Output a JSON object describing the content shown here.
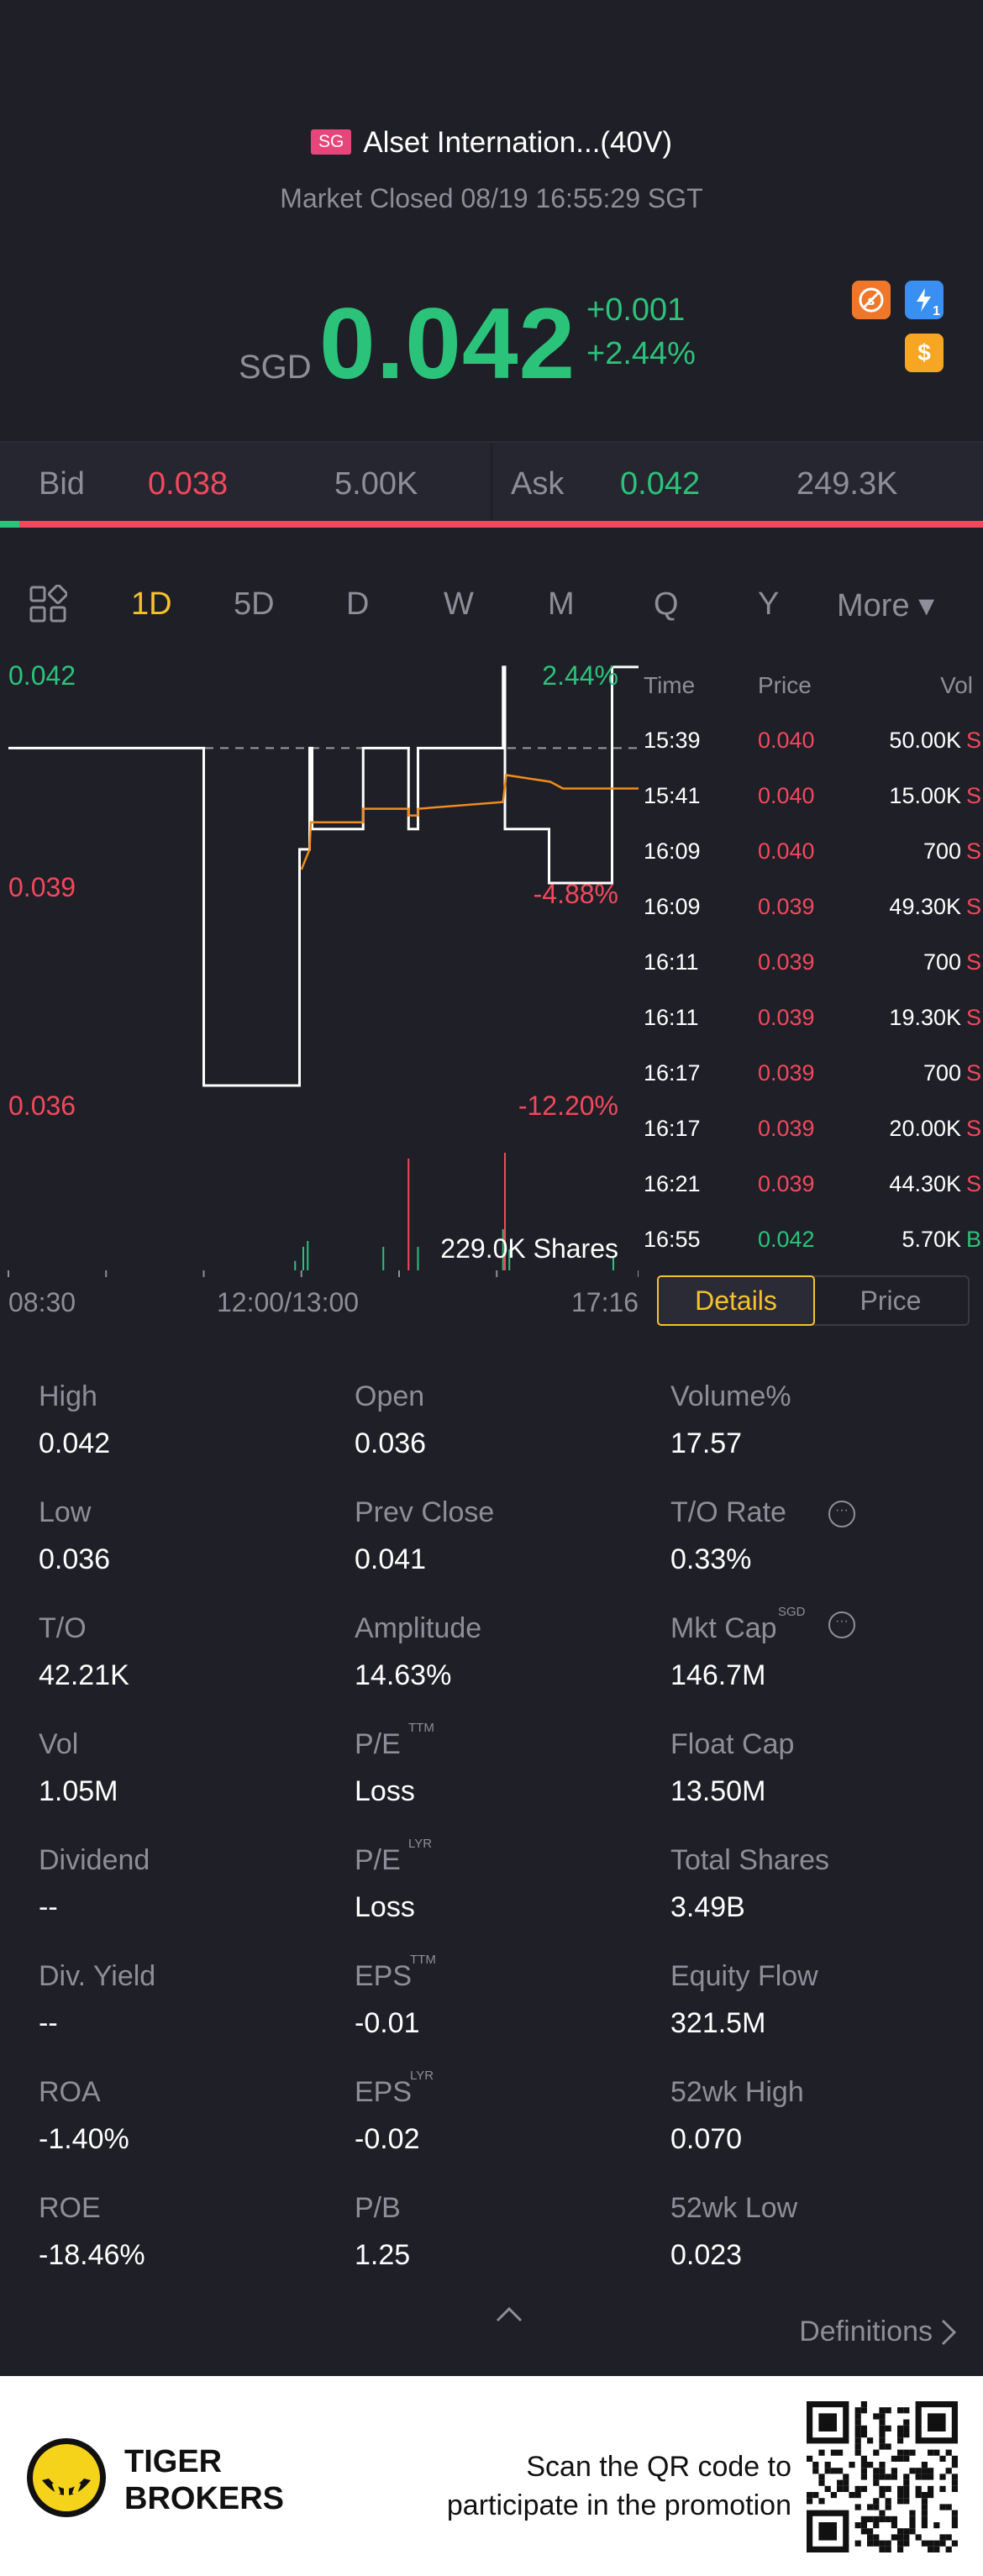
{
  "header": {
    "market_badge": "SG",
    "title": "Alset Internation...(40V)",
    "status": "Market Closed 08/19 16:55:29 SGT",
    "currency": "SGD",
    "price": "0.042",
    "change": "+0.001",
    "change_pct": "+2.44%",
    "icons": [
      "no-short-icon",
      "lightning-level-icon",
      "dollar-icon"
    ],
    "lightning_icon_text": "1",
    "dollar_icon_text": "$"
  },
  "bid_ask": {
    "bid_label": "Bid",
    "bid_price": "0.038",
    "bid_size": "5.00K",
    "ask_label": "Ask",
    "ask_price": "0.042",
    "ask_size": "249.3K",
    "bid_ratio": 0.02
  },
  "tabs": {
    "items": [
      "1D",
      "5D",
      "D",
      "W",
      "M",
      "Q",
      "Y",
      "More ▾"
    ],
    "active": "1D"
  },
  "chart_data": {
    "type": "line",
    "y_labels_left": [
      "0.042",
      "0.039",
      "0.036"
    ],
    "y_labels_right": [
      "2.44%",
      "-4.88%",
      "-12.20%"
    ],
    "x_labels": [
      "08:30",
      "12:00/13:00",
      "17:16"
    ],
    "ylim": [
      0.036,
      0.042
    ],
    "prev_close": 0.041,
    "volume_label": "229.0K Shares",
    "series": [
      {
        "name": "price",
        "color": "#ffffff",
        "values": [
          [
            0,
            0.041
          ],
          [
            0.31,
            0.041
          ],
          [
            0.31,
            0.036
          ],
          [
            0.462,
            0.036
          ],
          [
            0.462,
            0.0395
          ],
          [
            0.478,
            0.0395
          ],
          [
            0.478,
            0.041
          ],
          [
            0.482,
            0.041
          ],
          [
            0.482,
            0.0398
          ],
          [
            0.563,
            0.0398
          ],
          [
            0.563,
            0.041
          ],
          [
            0.635,
            0.041
          ],
          [
            0.635,
            0.0398
          ],
          [
            0.65,
            0.0398
          ],
          [
            0.65,
            0.041
          ],
          [
            0.785,
            0.041
          ],
          [
            0.785,
            0.0422
          ],
          [
            0.788,
            0.0422
          ],
          [
            0.788,
            0.0398
          ],
          [
            0.858,
            0.0398
          ],
          [
            0.858,
            0.039
          ],
          [
            0.958,
            0.039
          ],
          [
            0.958,
            0.0422
          ],
          [
            1.0,
            0.0422
          ]
        ]
      },
      {
        "name": "average",
        "color": "#f08c1e",
        "values": [
          [
            0.465,
            0.0392
          ],
          [
            0.478,
            0.0395
          ],
          [
            0.48,
            0.0399
          ],
          [
            0.563,
            0.0399
          ],
          [
            0.563,
            0.0401
          ],
          [
            0.635,
            0.0401
          ],
          [
            0.635,
            0.04
          ],
          [
            0.65,
            0.04
          ],
          [
            0.65,
            0.0401
          ],
          [
            0.785,
            0.0402
          ],
          [
            0.79,
            0.0406
          ],
          [
            0.86,
            0.0405
          ],
          [
            0.88,
            0.0404
          ],
          [
            1.0,
            0.0404
          ]
        ]
      }
    ],
    "volume_bars": [
      {
        "x": 0.455,
        "v": 0.08,
        "color": "#2bc37a"
      },
      {
        "x": 0.468,
        "v": 0.2,
        "color": "#2bc37a"
      },
      {
        "x": 0.475,
        "v": 0.25,
        "color": "#2bc37a"
      },
      {
        "x": 0.595,
        "v": 0.2,
        "color": "#2bc37a"
      },
      {
        "x": 0.635,
        "v": 0.95,
        "color": "#f2485c"
      },
      {
        "x": 0.65,
        "v": 0.2,
        "color": "#2bc37a"
      },
      {
        "x": 0.785,
        "v": 0.35,
        "color": "#2bc37a"
      },
      {
        "x": 0.788,
        "v": 1.0,
        "color": "#f2485c"
      },
      {
        "x": 0.795,
        "v": 0.18,
        "color": "#2bc37a"
      },
      {
        "x": 0.96,
        "v": 0.12,
        "color": "#2bc37a"
      }
    ]
  },
  "ticks": {
    "headers": {
      "time": "Time",
      "price": "Price",
      "vol": "Vol"
    },
    "rows": [
      {
        "time": "15:39",
        "price": "0.040",
        "vol": "50.00K",
        "side": "S",
        "dir": "down"
      },
      {
        "time": "15:41",
        "price": "0.040",
        "vol": "15.00K",
        "side": "S",
        "dir": "down"
      },
      {
        "time": "16:09",
        "price": "0.040",
        "vol": "700",
        "side": "S",
        "dir": "down"
      },
      {
        "time": "16:09",
        "price": "0.039",
        "vol": "49.30K",
        "side": "S",
        "dir": "down"
      },
      {
        "time": "16:11",
        "price": "0.039",
        "vol": "700",
        "side": "S",
        "dir": "down"
      },
      {
        "time": "16:11",
        "price": "0.039",
        "vol": "19.30K",
        "side": "S",
        "dir": "down"
      },
      {
        "time": "16:17",
        "price": "0.039",
        "vol": "700",
        "side": "S",
        "dir": "down"
      },
      {
        "time": "16:17",
        "price": "0.039",
        "vol": "20.00K",
        "side": "S",
        "dir": "down"
      },
      {
        "time": "16:21",
        "price": "0.039",
        "vol": "44.30K",
        "side": "S",
        "dir": "down"
      },
      {
        "time": "16:55",
        "price": "0.042",
        "vol": "5.70K",
        "side": "B",
        "dir": "up"
      }
    ],
    "details_label": "Details",
    "price_label": "Price"
  },
  "stats": [
    [
      {
        "label": "High",
        "value": "0.042"
      },
      {
        "label": "Open",
        "value": "0.036"
      },
      {
        "label": "Volume%",
        "value": "17.57"
      }
    ],
    [
      {
        "label": "Low",
        "value": "0.036"
      },
      {
        "label": "Prev Close",
        "value": "0.041"
      },
      {
        "label": "T/O Rate",
        "value": "0.33%"
      }
    ],
    [
      {
        "label": "T/O",
        "value": "42.21K"
      },
      {
        "label": "Amplitude",
        "value": "14.63%"
      },
      {
        "label": "Mkt Cap",
        "value": "146.7M"
      }
    ],
    [
      {
        "label": "Vol",
        "value": "1.05M"
      },
      {
        "label": "P/E",
        "value": "Loss"
      },
      {
        "label": "Float Cap",
        "value": "13.50M"
      }
    ],
    [
      {
        "label": "Dividend",
        "value": "--"
      },
      {
        "label": "P/E",
        "value": "Loss"
      },
      {
        "label": "Total Shares",
        "value": "3.49B"
      }
    ],
    [
      {
        "label": "Div. Yield",
        "value": "--"
      },
      {
        "label": "EPS",
        "value": "-0.01"
      },
      {
        "label": "Equity Flow",
        "value": "321.5M"
      }
    ],
    [
      {
        "label": "ROA",
        "value": "-1.40%"
      },
      {
        "label": "EPS",
        "value": "-0.02"
      },
      {
        "label": "52wk High",
        "value": "0.070"
      }
    ],
    [
      {
        "label": "ROE",
        "value": "-18.46%"
      },
      {
        "label": "P/B",
        "value": "1.25"
      },
      {
        "label": "52wk Low",
        "value": "0.023"
      }
    ]
  ],
  "superscripts": {
    "mkt_cap": "SGD",
    "pe_ttm": "TTM",
    "pe_lyr": "LYR",
    "eps_ttm": "TTM",
    "eps_lyr": "LYR"
  },
  "info_icon_text": "···",
  "definitions_label": "Definitions",
  "footer": {
    "brand_line1": "TIGER",
    "brand_line2": "BROKERS",
    "promo_line1": "Scan the QR code to",
    "promo_line2": "participate in the promotion"
  }
}
